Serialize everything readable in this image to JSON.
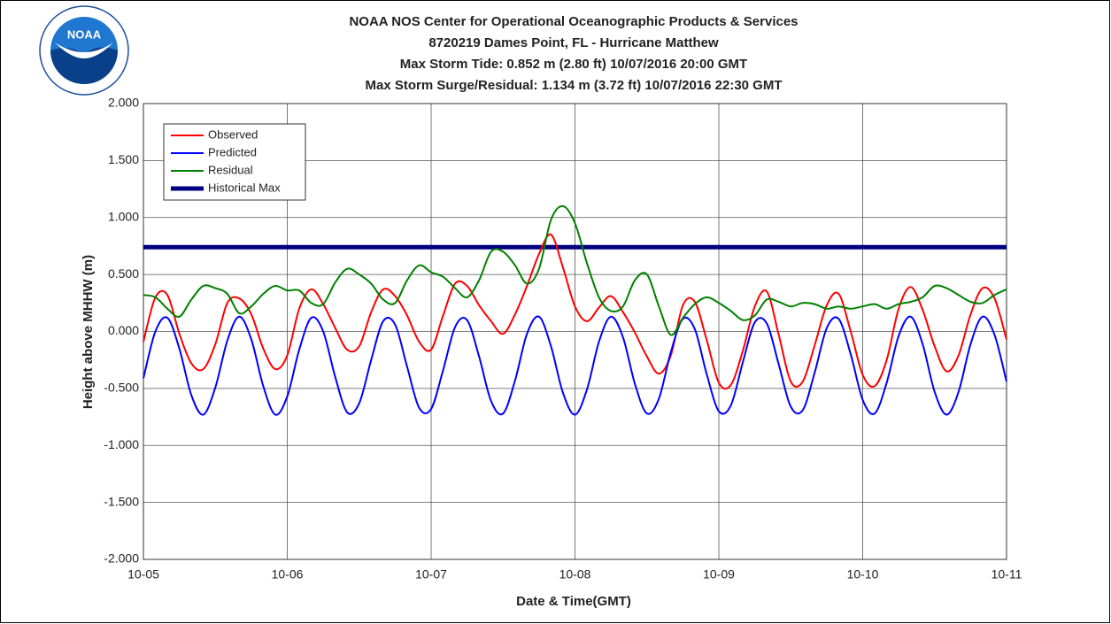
{
  "chart_data": {
    "type": "line",
    "title": "NOAA NOS Center for Operational Oceanographic Products & Services",
    "subtitle_lines": [
      "8720219 Dames Point, FL - Hurricane Matthew",
      "Max Storm Tide: 0.852 m (2.80 ft) 10/07/2016 20:00 GMT",
      "Max Storm Surge/Residual: 1.134 m (3.72 ft) 10/07/2016 22:30 GMT"
    ],
    "logo_text": "NOAA",
    "x_label": "Date & Time(GMT)",
    "y_label": "Height above MHHW (m)",
    "x": [
      "10-05 00:00",
      "10-05 02:00",
      "10-05 04:00",
      "10-05 06:00",
      "10-05 08:00",
      "10-05 10:00",
      "10-05 12:00",
      "10-05 14:00",
      "10-05 16:00",
      "10-05 18:00",
      "10-05 20:00",
      "10-05 22:00",
      "10-06 00:00",
      "10-06 02:00",
      "10-06 04:00",
      "10-06 06:00",
      "10-06 08:00",
      "10-06 10:00",
      "10-06 12:00",
      "10-06 14:00",
      "10-06 16:00",
      "10-06 18:00",
      "10-06 20:00",
      "10-06 22:00",
      "10-07 00:00",
      "10-07 02:00",
      "10-07 04:00",
      "10-07 06:00",
      "10-07 08:00",
      "10-07 10:00",
      "10-07 12:00",
      "10-07 14:00",
      "10-07 16:00",
      "10-07 18:00",
      "10-07 20:00",
      "10-07 22:00",
      "10-08 00:00",
      "10-08 02:00",
      "10-08 04:00",
      "10-08 06:00",
      "10-08 08:00",
      "10-08 10:00",
      "10-08 12:00",
      "10-08 14:00",
      "10-08 16:00",
      "10-08 18:00",
      "10-08 20:00",
      "10-08 22:00",
      "10-09 00:00",
      "10-09 02:00",
      "10-09 04:00",
      "10-09 06:00",
      "10-09 08:00",
      "10-09 10:00",
      "10-09 12:00",
      "10-09 14:00",
      "10-09 16:00",
      "10-09 18:00",
      "10-09 20:00",
      "10-09 22:00",
      "10-10 00:00",
      "10-10 02:00",
      "10-10 04:00",
      "10-10 06:00",
      "10-10 08:00",
      "10-10 10:00",
      "10-10 12:00",
      "10-10 14:00",
      "10-10 16:00",
      "10-10 18:00",
      "10-10 20:00",
      "10-10 22:00",
      "10-11 00:00"
    ],
    "series": [
      {
        "name": "Observed",
        "color": "#ff0000",
        "values": [
          -0.09,
          0.3,
          0.32,
          -0.02,
          -0.28,
          -0.33,
          -0.11,
          0.25,
          0.29,
          0.15,
          -0.15,
          -0.33,
          -0.21,
          0.2,
          0.37,
          0.24,
          0.03,
          -0.16,
          -0.13,
          0.17,
          0.37,
          0.31,
          0.14,
          -0.09,
          -0.16,
          0.14,
          0.42,
          0.4,
          0.23,
          0.09,
          -0.02,
          0.15,
          0.4,
          0.68,
          0.85,
          0.56,
          0.22,
          0.09,
          0.21,
          0.31,
          0.17,
          -0.01,
          -0.22,
          -0.37,
          -0.21,
          0.23,
          0.26,
          -0.08,
          -0.45,
          -0.47,
          -0.17,
          0.22,
          0.35,
          -0.03,
          -0.44,
          -0.44,
          -0.12,
          0.23,
          0.33,
          0,
          -0.38,
          -0.48,
          -0.25,
          0.2,
          0.39,
          0.19,
          -0.13,
          -0.35,
          -0.21,
          0.15,
          0.38,
          0.29,
          -0.07
        ]
      },
      {
        "name": "Predicted",
        "color": "#0000ff",
        "values": [
          -0.41,
          0,
          0.12,
          -0.15,
          -0.56,
          -0.73,
          -0.49,
          -0.08,
          0.13,
          -0.07,
          -0.48,
          -0.73,
          -0.57,
          -0.16,
          0.12,
          0,
          -0.4,
          -0.71,
          -0.63,
          -0.25,
          0.09,
          0.06,
          -0.31,
          -0.67,
          -0.68,
          -0.34,
          0.04,
          0.1,
          -0.22,
          -0.61,
          -0.72,
          -0.43,
          -0.02,
          0.13,
          -0.13,
          -0.54,
          -0.73,
          -0.51,
          -0.09,
          0.13,
          -0.05,
          -0.46,
          -0.72,
          -0.59,
          -0.18,
          0.11,
          0.02,
          -0.38,
          -0.7,
          -0.65,
          -0.27,
          0.08,
          0.07,
          -0.29,
          -0.66,
          -0.69,
          -0.36,
          0.03,
          0.11,
          -0.2,
          -0.6,
          -0.72,
          -0.45,
          -0.04,
          0.13,
          -0.11,
          -0.53,
          -0.73,
          -0.53,
          -0.11,
          0.13,
          -0.03,
          -0.44
        ]
      },
      {
        "name": "Residual",
        "color": "#008000",
        "values": [
          0.32,
          0.3,
          0.2,
          0.13,
          0.28,
          0.4,
          0.38,
          0.33,
          0.16,
          0.22,
          0.33,
          0.4,
          0.36,
          0.36,
          0.25,
          0.24,
          0.43,
          0.55,
          0.5,
          0.42,
          0.28,
          0.25,
          0.45,
          0.58,
          0.52,
          0.48,
          0.38,
          0.3,
          0.45,
          0.7,
          0.7,
          0.58,
          0.42,
          0.55,
          0.98,
          1.1,
          0.95,
          0.6,
          0.3,
          0.18,
          0.22,
          0.45,
          0.5,
          0.22,
          -0.03,
          0.12,
          0.24,
          0.3,
          0.25,
          0.18,
          0.1,
          0.14,
          0.28,
          0.26,
          0.22,
          0.25,
          0.24,
          0.2,
          0.22,
          0.2,
          0.22,
          0.24,
          0.2,
          0.24,
          0.26,
          0.3,
          0.4,
          0.38,
          0.32,
          0.26,
          0.25,
          0.32,
          0.37
        ]
      }
    ],
    "reference_line": {
      "name": "Historical Max",
      "color": "#000080",
      "value": 0.74
    },
    "xlim": [
      "10-05",
      "10-11"
    ],
    "xticks": [
      "10-05",
      "10-06",
      "10-07",
      "10-08",
      "10-09",
      "10-10",
      "10-11"
    ],
    "ylim": [
      -2,
      2
    ],
    "yticks": [
      {
        "value": -2,
        "label": "-2.000"
      },
      {
        "value": -1.5,
        "label": "-1.500"
      },
      {
        "value": -1,
        "label": "-1.000"
      },
      {
        "value": -0.5,
        "label": "-0.500"
      },
      {
        "value": 0,
        "label": "0.000"
      },
      {
        "value": 0.5,
        "label": "0.500"
      },
      {
        "value": 1,
        "label": "1.000"
      },
      {
        "value": 1.5,
        "label": "1.500"
      },
      {
        "value": 2,
        "label": "2.000"
      }
    ],
    "grid": true,
    "legend": "upper left"
  }
}
